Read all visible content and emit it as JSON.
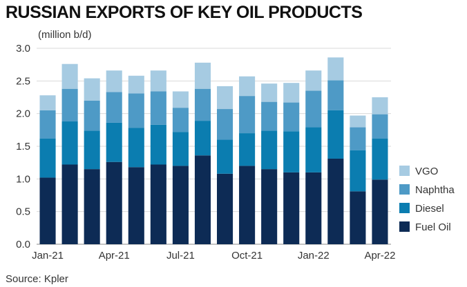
{
  "chart_data": {
    "type": "bar",
    "stacked": true,
    "title": "RUSSIAN EXPORTS OF KEY OIL PRODUCTS",
    "ylabel": "(million b/d)",
    "source": "Source: Kpler",
    "ylim": [
      0,
      3.0
    ],
    "yticks": [
      "0.0",
      "0.5",
      "1.0",
      "1.5",
      "2.0",
      "2.5",
      "3.0"
    ],
    "ytick_values": [
      0,
      0.5,
      1.0,
      1.5,
      2.0,
      2.5,
      3.0
    ],
    "categories": [
      "Jan-21",
      "Feb-21",
      "Mar-21",
      "Apr-21",
      "May-21",
      "Jun-21",
      "Jul-21",
      "Aug-21",
      "Sep-21",
      "Oct-21",
      "Nov-21",
      "Dec-21",
      "Jan-22",
      "Feb-22",
      "Mar-22",
      "Apr-22"
    ],
    "xtick_labels": [
      "Jan-21",
      "",
      "",
      "Apr-21",
      "",
      "",
      "Jul-21",
      "",
      "",
      "Oct-21",
      "",
      "",
      "Jan-22",
      "",
      "",
      "Apr-22"
    ],
    "grid": true,
    "legend_position": "right",
    "series": [
      {
        "name": "Fuel Oil",
        "color": "#0d2b55",
        "values": [
          1.02,
          1.22,
          1.15,
          1.26,
          1.18,
          1.22,
          1.2,
          1.36,
          1.08,
          1.2,
          1.15,
          1.1,
          1.1,
          1.31,
          0.81,
          0.99
        ]
      },
      {
        "name": "Diesel",
        "color": "#0b7db0",
        "values": [
          0.6,
          0.66,
          0.59,
          0.6,
          0.6,
          0.61,
          0.52,
          0.53,
          0.52,
          0.5,
          0.59,
          0.63,
          0.69,
          0.74,
          0.63,
          0.63
        ]
      },
      {
        "name": "Naphtha",
        "color": "#4e9ac6",
        "values": [
          0.43,
          0.5,
          0.46,
          0.47,
          0.53,
          0.51,
          0.37,
          0.49,
          0.47,
          0.57,
          0.44,
          0.44,
          0.56,
          0.46,
          0.35,
          0.37
        ]
      },
      {
        "name": "VGO",
        "color": "#a6cbe2",
        "values": [
          0.23,
          0.38,
          0.34,
          0.33,
          0.27,
          0.32,
          0.25,
          0.4,
          0.35,
          0.3,
          0.28,
          0.3,
          0.31,
          0.35,
          0.18,
          0.26
        ]
      }
    ],
    "legend_order": [
      "VGO",
      "Naphtha",
      "Diesel",
      "Fuel Oil"
    ]
  }
}
